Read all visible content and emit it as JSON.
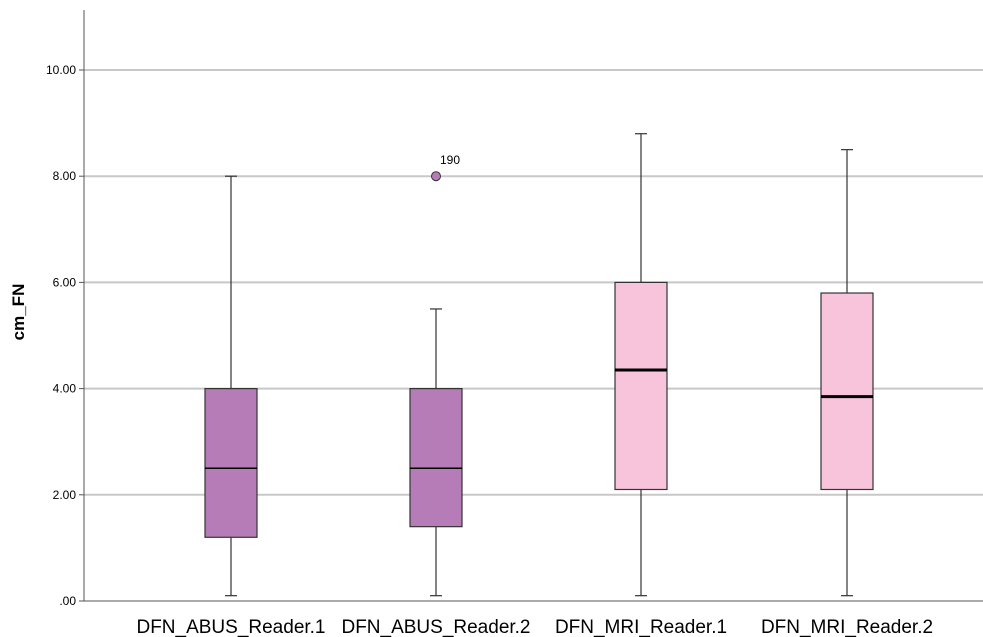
{
  "chart_data": {
    "type": "boxplot",
    "ylabel": "cm_FN",
    "xlabel": "",
    "ylim": [
      0,
      11.0
    ],
    "yticks": [
      0,
      2,
      4,
      6,
      8,
      10
    ],
    "ytick_labels": [
      ".00",
      "2.00",
      "4.00",
      "6.00",
      "8.00",
      "10.00"
    ],
    "grid": "horizontal",
    "categories": [
      "DFN_ABUS_Reader.1",
      "DFN_ABUS_Reader.2",
      "DFN_MRI_Reader.1",
      "DFN_MRI_Reader.2"
    ],
    "boxes": [
      {
        "min": 0.1,
        "q1": 1.2,
        "median": 2.5,
        "q3": 4.0,
        "max": 8.0,
        "outliers": []
      },
      {
        "min": 0.1,
        "q1": 1.4,
        "median": 2.5,
        "q3": 4.0,
        "max": 5.5,
        "outliers": [
          {
            "value": 8.0,
            "label": "190"
          }
        ]
      },
      {
        "min": 0.1,
        "q1": 2.1,
        "median": 4.35,
        "q3": 6.0,
        "max": 8.8,
        "outliers": []
      },
      {
        "min": 0.1,
        "q1": 2.1,
        "median": 3.85,
        "q3": 5.8,
        "max": 8.5,
        "outliers": []
      }
    ],
    "colors": {
      "abus_fill": "#b67cb7",
      "mri_fill": "#f7c4dc",
      "grid": "#c8c8c8",
      "axis": "#555555",
      "outlier_fill": "#b67cb7"
    }
  }
}
